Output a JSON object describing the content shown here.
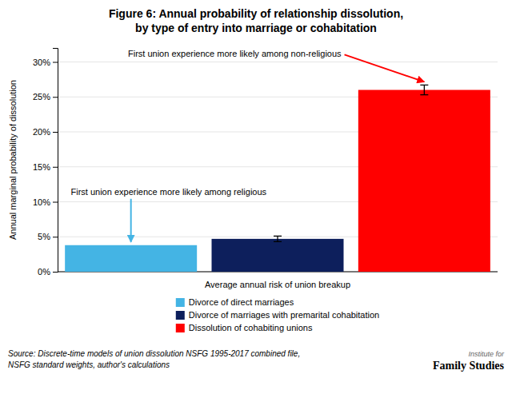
{
  "chart_data": {
    "type": "bar",
    "title": [
      "Figure 6: Annual probability of relationship dissolution,",
      "by type of entry into marriage or cohabitation"
    ],
    "categories": [
      "Divorce of direct marriages",
      "Divorce of marriages with premarital cohabitation",
      "Dissolution of cohabiting unions"
    ],
    "values": [
      0.038,
      0.047,
      0.26
    ],
    "errors": [
      0.0,
      0.004,
      0.007
    ],
    "colors": [
      "#44B4E4",
      "#0D1F5C",
      "#FF0000"
    ],
    "xlabel": "Average annual risk of union breakup",
    "ylabel": "Annual marginal probability of dissolution",
    "ylim": [
      0,
      0.32
    ],
    "yticks": [
      {
        "value": 0.0,
        "label": "0%"
      },
      {
        "value": 0.05,
        "label": "5%"
      },
      {
        "value": 0.1,
        "label": "10%"
      },
      {
        "value": 0.15,
        "label": "15%"
      },
      {
        "value": 0.2,
        "label": "20%"
      },
      {
        "value": 0.25,
        "label": "25%"
      },
      {
        "value": 0.3,
        "label": "30%"
      }
    ],
    "grid": true,
    "tick_labels": "y",
    "legend": "bottom",
    "annotations": [
      {
        "text": "First union experience more likely among non-religious",
        "category": "Dissolution of cohabiting unions"
      },
      {
        "text": "First union experience more likely among religious",
        "category": "Divorce of direct marriages"
      }
    ],
    "source": [
      "Source: Discrete-time models of union dissolution NSFG 1995-2017 combined file,",
      "NSFG standard weights, author's calculations"
    ],
    "credit": [
      "Institute for",
      "Family Studies"
    ]
  }
}
